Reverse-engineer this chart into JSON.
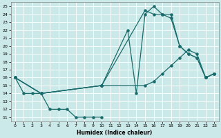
{
  "xlabel": "Humidex (Indice chaleur)",
  "bg_color": "#cce9e9",
  "line_color": "#1a6b6b",
  "xlim": [
    -0.5,
    23.5
  ],
  "ylim": [
    10.5,
    25.5
  ],
  "xticks": [
    0,
    1,
    2,
    3,
    4,
    5,
    6,
    7,
    8,
    9,
    10,
    11,
    12,
    13,
    14,
    15,
    16,
    17,
    18,
    19,
    20,
    21,
    22,
    23
  ],
  "yticks": [
    11,
    12,
    13,
    14,
    15,
    16,
    17,
    18,
    19,
    20,
    21,
    22,
    23,
    24,
    25
  ],
  "line1_x": [
    0,
    1,
    2,
    3,
    4,
    5,
    6,
    7,
    8,
    9,
    10
  ],
  "line1_y": [
    16,
    14,
    14,
    14,
    12,
    12,
    12,
    11,
    11,
    11,
    11
  ],
  "line2_x": [
    0,
    3,
    10,
    13,
    14,
    15,
    16,
    17,
    18,
    19,
    20,
    21,
    22,
    23
  ],
  "line2_y": [
    16,
    14,
    15,
    22,
    14,
    24,
    25,
    24,
    24,
    20,
    19,
    18.5,
    16,
    16.5
  ],
  "line3_x": [
    0,
    3,
    10,
    15,
    16,
    17,
    18,
    19,
    20,
    21,
    22,
    23
  ],
  "line3_y": [
    16,
    14,
    15,
    24.5,
    24,
    24,
    23.5,
    20,
    19,
    18.5,
    16,
    16.5
  ],
  "line4_x": [
    0,
    3,
    10,
    15,
    16,
    17,
    18,
    19,
    20,
    21,
    22,
    23
  ],
  "line4_y": [
    16,
    14,
    15,
    15,
    15.5,
    16.5,
    17.5,
    18.5,
    19.5,
    19,
    16,
    16.5
  ]
}
